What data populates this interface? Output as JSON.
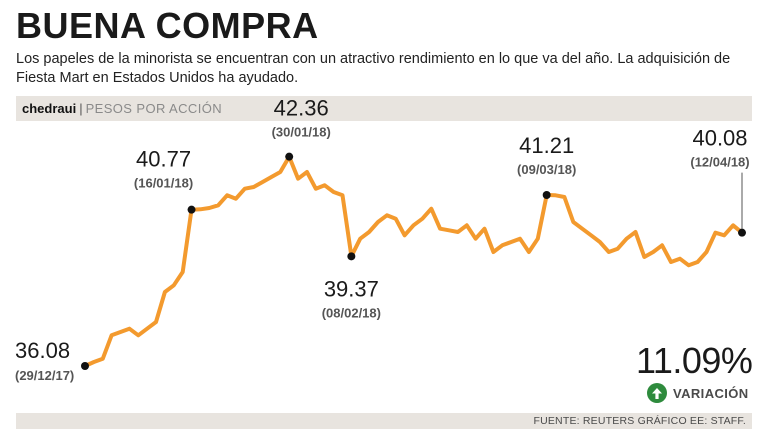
{
  "header": {
    "title": "BUENA COMPRA",
    "subtitle": "Los papeles de la minorista se encuentran con un atractivo rendimiento en lo que va del año. La adquisición de Fiesta Mart en Estados Unidos ha ayudado."
  },
  "label_bar": {
    "brand": "chedraui",
    "separator": "|",
    "unit": "PESOS POR ACCIÓN"
  },
  "variation": {
    "value": "11.09%",
    "label": "VARIACIÓN",
    "icon": "arrow-up-icon"
  },
  "source": "FUENTE: REUTERS GRÁFICO EE: STAFF.",
  "colors": {
    "line": "#f39a2e",
    "marker": "#111111",
    "band": "#e8e4df",
    "up_arrow": "#2e8b3d"
  },
  "chart_data": {
    "type": "line",
    "title": "chedraui",
    "ylabel": "PESOS POR ACCIÓN",
    "ylim": [
      35.3,
      43.1
    ],
    "values": [
      36.08,
      36.2,
      36.3,
      37.0,
      37.1,
      37.2,
      37.0,
      37.2,
      37.4,
      38.3,
      38.5,
      38.9,
      40.77,
      40.78,
      40.82,
      40.9,
      41.2,
      41.1,
      41.4,
      41.45,
      41.6,
      41.75,
      41.9,
      42.36,
      41.7,
      41.9,
      41.4,
      41.5,
      41.3,
      41.2,
      39.37,
      39.9,
      40.1,
      40.4,
      40.6,
      40.5,
      40.0,
      40.3,
      40.5,
      40.8,
      40.2,
      40.15,
      40.1,
      40.3,
      39.9,
      40.2,
      39.5,
      39.7,
      39.8,
      39.9,
      39.5,
      39.9,
      41.21,
      41.2,
      41.15,
      40.4,
      40.2,
      40.0,
      39.8,
      39.5,
      39.6,
      39.9,
      40.1,
      39.35,
      39.5,
      39.7,
      39.2,
      39.3,
      39.1,
      39.2,
      39.5,
      40.08,
      40.0,
      40.3,
      40.08
    ],
    "annotations": [
      {
        "index": 0,
        "value": "36.08",
        "date": "(29/12/17)"
      },
      {
        "index": 12,
        "value": "40.77",
        "date": "(16/01/18)"
      },
      {
        "index": 23,
        "value": "42.36",
        "date": "(30/01/18)"
      },
      {
        "index": 30,
        "value": "39.37",
        "date": "(08/02/18)"
      },
      {
        "index": 52,
        "value": "41.21",
        "date": "(09/03/18)"
      },
      {
        "index": 74,
        "value": "40.08",
        "date": "(12/04/18)"
      }
    ]
  }
}
